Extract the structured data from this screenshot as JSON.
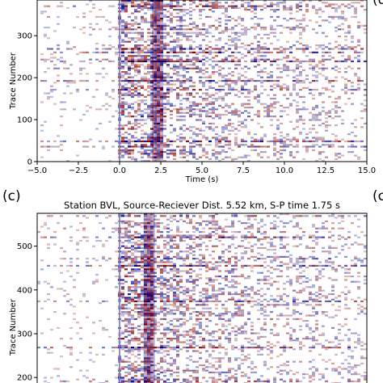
{
  "chart_data": [
    {
      "type": "heatmap",
      "panel": "",
      "title": "",
      "xlabel": "Time (s)",
      "ylabel": "Trace Number",
      "xlim": [
        -5.0,
        15.0
      ],
      "ylim": [
        0,
        385
      ],
      "xticks": [
        -5.0,
        -2.5,
        0.0,
        2.5,
        5.0,
        7.5,
        10.0,
        12.5,
        15.0
      ],
      "xtick_labels": [
        "−5.0",
        "−2.5",
        "0.0",
        "2.5",
        "5.0",
        "7.5",
        "10.0",
        "12.5",
        "15.0"
      ],
      "yticks": [
        0,
        100,
        200,
        300
      ],
      "ytick_labels": [
        "0",
        "100",
        "200",
        "300"
      ],
      "n_traces": 385,
      "p_arrival_s": 0.0,
      "s_arrival_s": 2.25,
      "colormap": "seismic",
      "colors": {
        "positive": "#8b0000",
        "negative": "#00008b",
        "zero": "#ffffff"
      }
    },
    {
      "type": "heatmap",
      "panel": "(c)",
      "title": "Station BVL, Source-Reciever Dist. 5.52 km, S-P time 1.75 s",
      "xlabel": "",
      "ylabel": "Trace Number",
      "xlim": [
        -5.0,
        15.0
      ],
      "ylim": [
        180,
        575
      ],
      "yticks": [
        200,
        300,
        400,
        500
      ],
      "ytick_labels": [
        "200",
        "300",
        "400",
        "500"
      ],
      "n_traces": 575,
      "p_arrival_s": 0.0,
      "s_arrival_s": 1.75,
      "colormap": "seismic",
      "colors": {
        "positive": "#8b0000",
        "negative": "#00008b",
        "zero": "#ffffff"
      }
    }
  ],
  "right_edge_panel_letters": [
    "(d",
    "(c"
  ]
}
